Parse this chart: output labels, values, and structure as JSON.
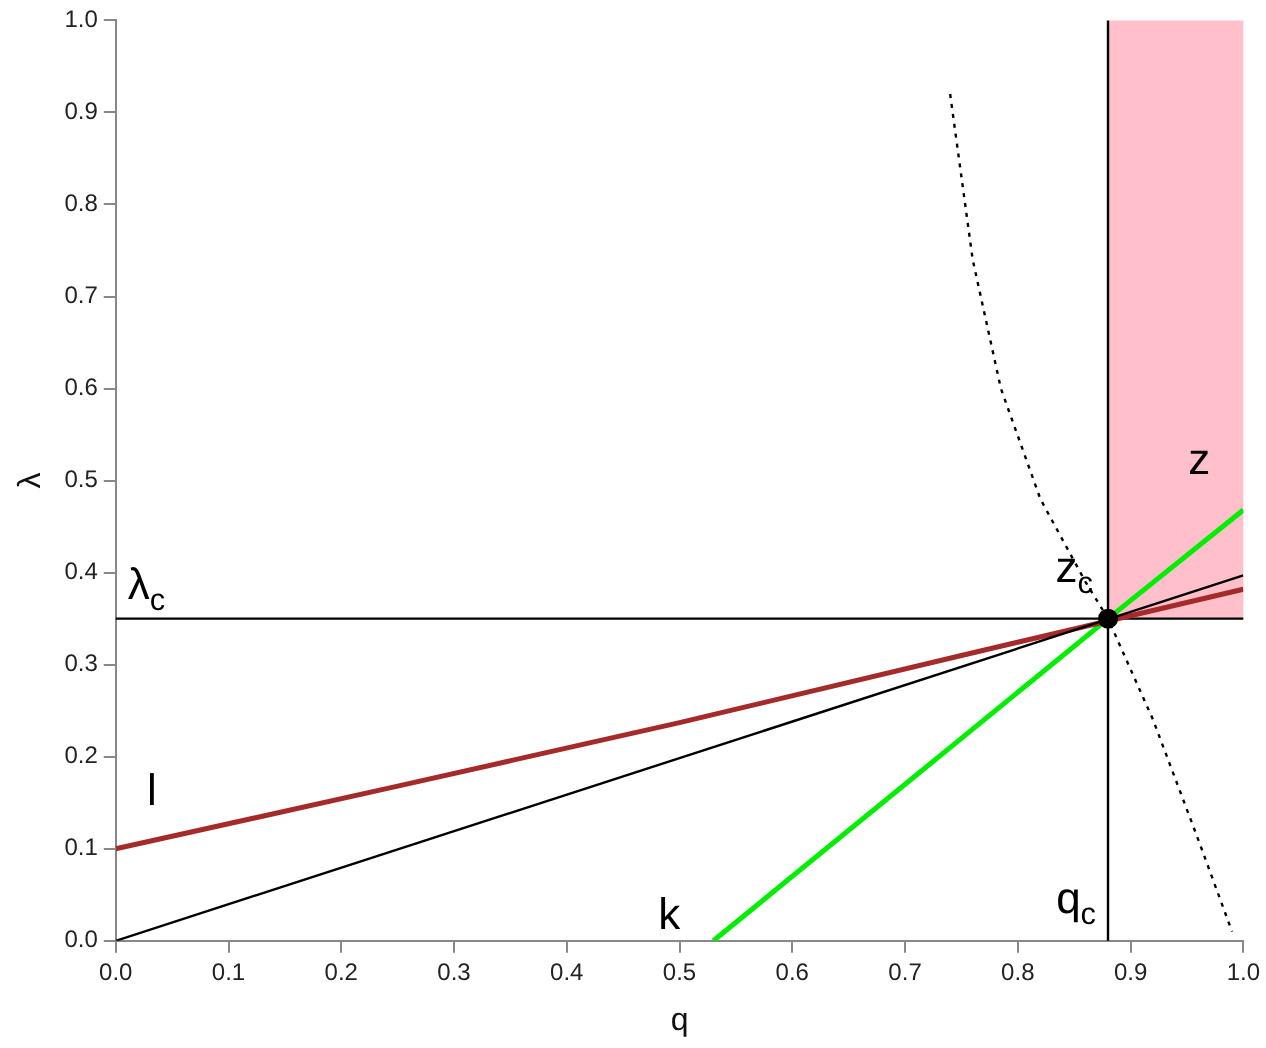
{
  "chart_data": {
    "type": "line",
    "xlabel": "q",
    "ylabel": "λ",
    "xlim": [
      0,
      1
    ],
    "ylim": [
      0,
      1
    ],
    "xticks": [
      {
        "value": 0,
        "label": "0.0"
      },
      {
        "value": 0.1,
        "label": "0.1"
      },
      {
        "value": 0.2,
        "label": "0.2"
      },
      {
        "value": 0.3,
        "label": "0.3"
      },
      {
        "value": 0.4,
        "label": "0.4"
      },
      {
        "value": 0.5,
        "label": "0.5"
      },
      {
        "value": 0.6,
        "label": "0.6"
      },
      {
        "value": 0.7,
        "label": "0.7"
      },
      {
        "value": 0.8,
        "label": "0.8"
      },
      {
        "value": 0.9,
        "label": "0.9"
      },
      {
        "value": 1,
        "label": "1.0"
      }
    ],
    "yticks": [
      {
        "value": 0,
        "label": "0.0"
      },
      {
        "value": 0.1,
        "label": "0.1"
      },
      {
        "value": 0.2,
        "label": "0.2"
      },
      {
        "value": 0.3,
        "label": "0.3"
      },
      {
        "value": 0.4,
        "label": "0.4"
      },
      {
        "value": 0.5,
        "label": "0.5"
      },
      {
        "value": 0.6,
        "label": "0.6"
      },
      {
        "value": 0.7,
        "label": "0.7"
      },
      {
        "value": 0.8,
        "label": "0.8"
      },
      {
        "value": 0.9,
        "label": "0.9"
      },
      {
        "value": 1,
        "label": "1.0"
      }
    ],
    "grid": false,
    "legend": false,
    "marker": "none",
    "line_style": "solid",
    "series": [
      {
        "color": "#000000",
        "x": [
          0,
          1
        ],
        "values": [
          0,
          0.397
        ]
      },
      {
        "name": "l",
        "color": "#a52a2a",
        "x": [
          0,
          0.25,
          0.5,
          0.75,
          1
        ],
        "values": [
          0.1,
          0.168,
          0.237,
          0.31,
          0.382
        ]
      },
      {
        "name": "k",
        "color": "#00ee00",
        "x": [
          0.53,
          0.88
        ],
        "values": [
          0,
          0.35
        ]
      },
      {
        "name": "z",
        "color": "#00ee00",
        "x": [
          0.88,
          1
        ],
        "values": [
          0.35,
          0.468
        ]
      },
      {
        "color": "#000000",
        "line_style": "dotted",
        "x": [
          0.74,
          0.76,
          0.785,
          0.82,
          0.86,
          0.88,
          0.92,
          0.96,
          0.99
        ],
        "values": [
          0.92,
          0.74,
          0.6,
          0.48,
          0.39,
          0.35,
          0.24,
          0.11,
          0.01
        ]
      },
      {
        "type": "scatter",
        "marker": "circle",
        "color": "#000000",
        "x": [
          0.88
        ],
        "values": [
          0.35
        ]
      }
    ],
    "ref_lines": [
      {
        "axis": "x",
        "value": 0.88,
        "label": "q$_{c}$",
        "color": "#000000"
      },
      {
        "axis": "y",
        "value": 0.35,
        "label": "λ$_{c}$",
        "color": "#000000"
      }
    ],
    "bands": [
      {
        "axis": "x",
        "from": 0.88,
        "to": 1,
        "color": "#ffc0cb"
      }
    ],
    "annotations": [
      {
        "text": "z$_{c}$",
        "x": 0.85,
        "y": 0.39
      }
    ]
  }
}
